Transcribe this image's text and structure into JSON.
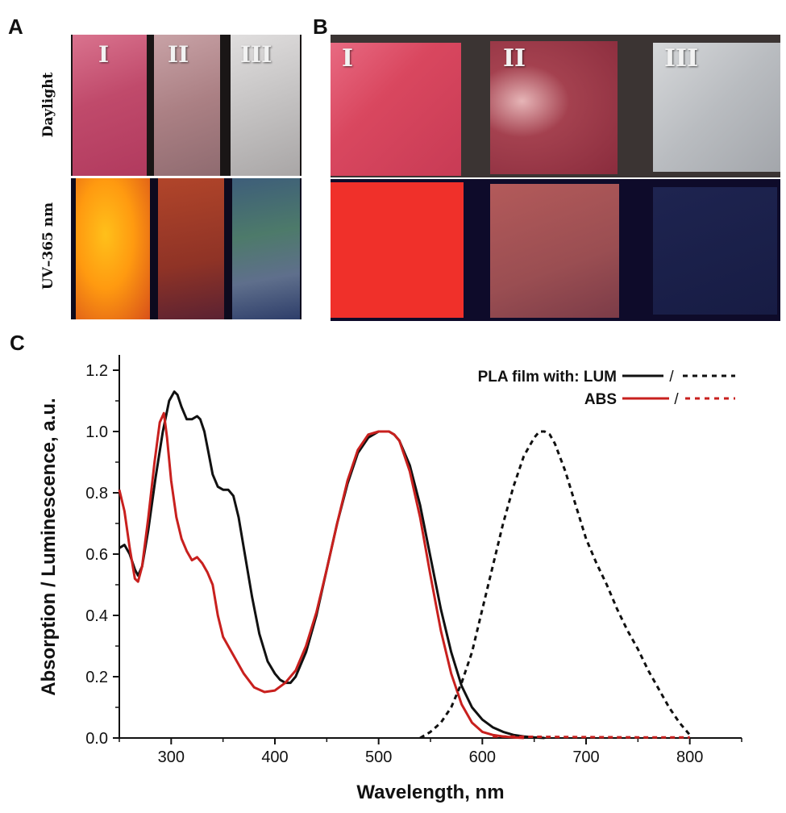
{
  "panel_labels": {
    "a": "A",
    "b": "B",
    "c": "C"
  },
  "panel_a": {
    "row_labels": {
      "daylight": "Daylight",
      "uv": "UV–365 nm"
    },
    "samples": [
      "I",
      "II",
      "III"
    ]
  },
  "panel_b": {
    "samples": [
      "I",
      "II",
      "III"
    ]
  },
  "colors": {
    "lum": "#111111",
    "abs": "#c8201e",
    "axis": "#111111"
  },
  "chart_data": {
    "type": "line",
    "title": "",
    "xlabel": "Wavelength, nm",
    "ylabel": "Absorption / Luminescence, a.u.",
    "xlim": [
      250,
      850
    ],
    "ylim": [
      0,
      1.25
    ],
    "xticks": [
      "300",
      "400",
      "500",
      "600",
      "700",
      "800"
    ],
    "yticks": [
      "0.0",
      "0.2",
      "0.4",
      "0.6",
      "0.8",
      "1.0",
      "1.2"
    ],
    "legend": {
      "position": "top-right",
      "header": "PLA film with: LUM",
      "row2": "ABS",
      "separator": "/"
    },
    "series": [
      {
        "name": "LUM absorption",
        "style": "solid",
        "color": "#111111",
        "x": [
          250,
          255,
          260,
          265,
          268,
          272,
          278,
          285,
          292,
          298,
          303,
          306,
          310,
          315,
          320,
          325,
          328,
          332,
          336,
          340,
          345,
          350,
          355,
          360,
          365,
          370,
          378,
          385,
          393,
          400,
          405,
          410,
          415,
          420,
          430,
          440,
          450,
          460,
          470,
          480,
          490,
          500,
          510,
          515,
          520,
          530,
          540,
          550,
          560,
          570,
          580,
          590,
          600,
          610,
          620,
          630,
          640,
          650,
          660
        ],
        "y": [
          0.62,
          0.63,
          0.6,
          0.55,
          0.53,
          0.56,
          0.68,
          0.85,
          1.0,
          1.1,
          1.13,
          1.12,
          1.08,
          1.04,
          1.04,
          1.05,
          1.04,
          1.0,
          0.93,
          0.86,
          0.82,
          0.81,
          0.81,
          0.79,
          0.72,
          0.62,
          0.46,
          0.34,
          0.25,
          0.21,
          0.19,
          0.18,
          0.18,
          0.2,
          0.28,
          0.4,
          0.55,
          0.7,
          0.83,
          0.93,
          0.98,
          1.0,
          1.0,
          0.99,
          0.97,
          0.89,
          0.76,
          0.59,
          0.42,
          0.28,
          0.17,
          0.1,
          0.06,
          0.035,
          0.02,
          0.01,
          0.005,
          0.002,
          0.0
        ]
      },
      {
        "name": "ABS absorption",
        "style": "solid",
        "color": "#c8201e",
        "x": [
          250,
          255,
          260,
          265,
          268,
          272,
          278,
          284,
          289,
          293,
          296,
          300,
          305,
          310,
          315,
          320,
          325,
          330,
          335,
          340,
          345,
          350,
          360,
          370,
          380,
          390,
          400,
          410,
          420,
          430,
          440,
          450,
          460,
          470,
          480,
          490,
          500,
          510,
          515,
          520,
          530,
          540,
          550,
          560,
          570,
          580,
          590,
          600,
          610,
          620,
          630,
          640
        ],
        "y": [
          0.81,
          0.74,
          0.62,
          0.52,
          0.51,
          0.56,
          0.72,
          0.9,
          1.03,
          1.06,
          0.98,
          0.84,
          0.72,
          0.65,
          0.61,
          0.58,
          0.59,
          0.57,
          0.54,
          0.5,
          0.4,
          0.33,
          0.27,
          0.21,
          0.165,
          0.15,
          0.155,
          0.18,
          0.22,
          0.3,
          0.41,
          0.55,
          0.7,
          0.84,
          0.94,
          0.99,
          1.0,
          1.0,
          0.99,
          0.97,
          0.87,
          0.72,
          0.53,
          0.35,
          0.21,
          0.11,
          0.05,
          0.02,
          0.01,
          0.005,
          0.002,
          0.0
        ]
      },
      {
        "name": "LUM luminescence",
        "style": "dashed",
        "color": "#111111",
        "x": [
          540,
          550,
          560,
          570,
          580,
          590,
          600,
          610,
          620,
          630,
          640,
          650,
          655,
          660,
          665,
          670,
          680,
          690,
          700,
          710,
          720,
          730,
          740,
          750,
          760,
          770,
          780,
          790,
          800
        ],
        "y": [
          0.0,
          0.02,
          0.05,
          0.1,
          0.18,
          0.28,
          0.42,
          0.56,
          0.7,
          0.82,
          0.92,
          0.98,
          1.0,
          1.0,
          0.99,
          0.96,
          0.87,
          0.76,
          0.65,
          0.57,
          0.5,
          0.42,
          0.35,
          0.29,
          0.22,
          0.16,
          0.1,
          0.05,
          0.01
        ]
      },
      {
        "name": "ABS luminescence",
        "style": "dashed",
        "color": "#c8201e",
        "x": [
          610,
          650,
          700,
          750,
          800
        ],
        "y": [
          0.005,
          0.004,
          0.003,
          0.002,
          0.002
        ]
      }
    ]
  }
}
